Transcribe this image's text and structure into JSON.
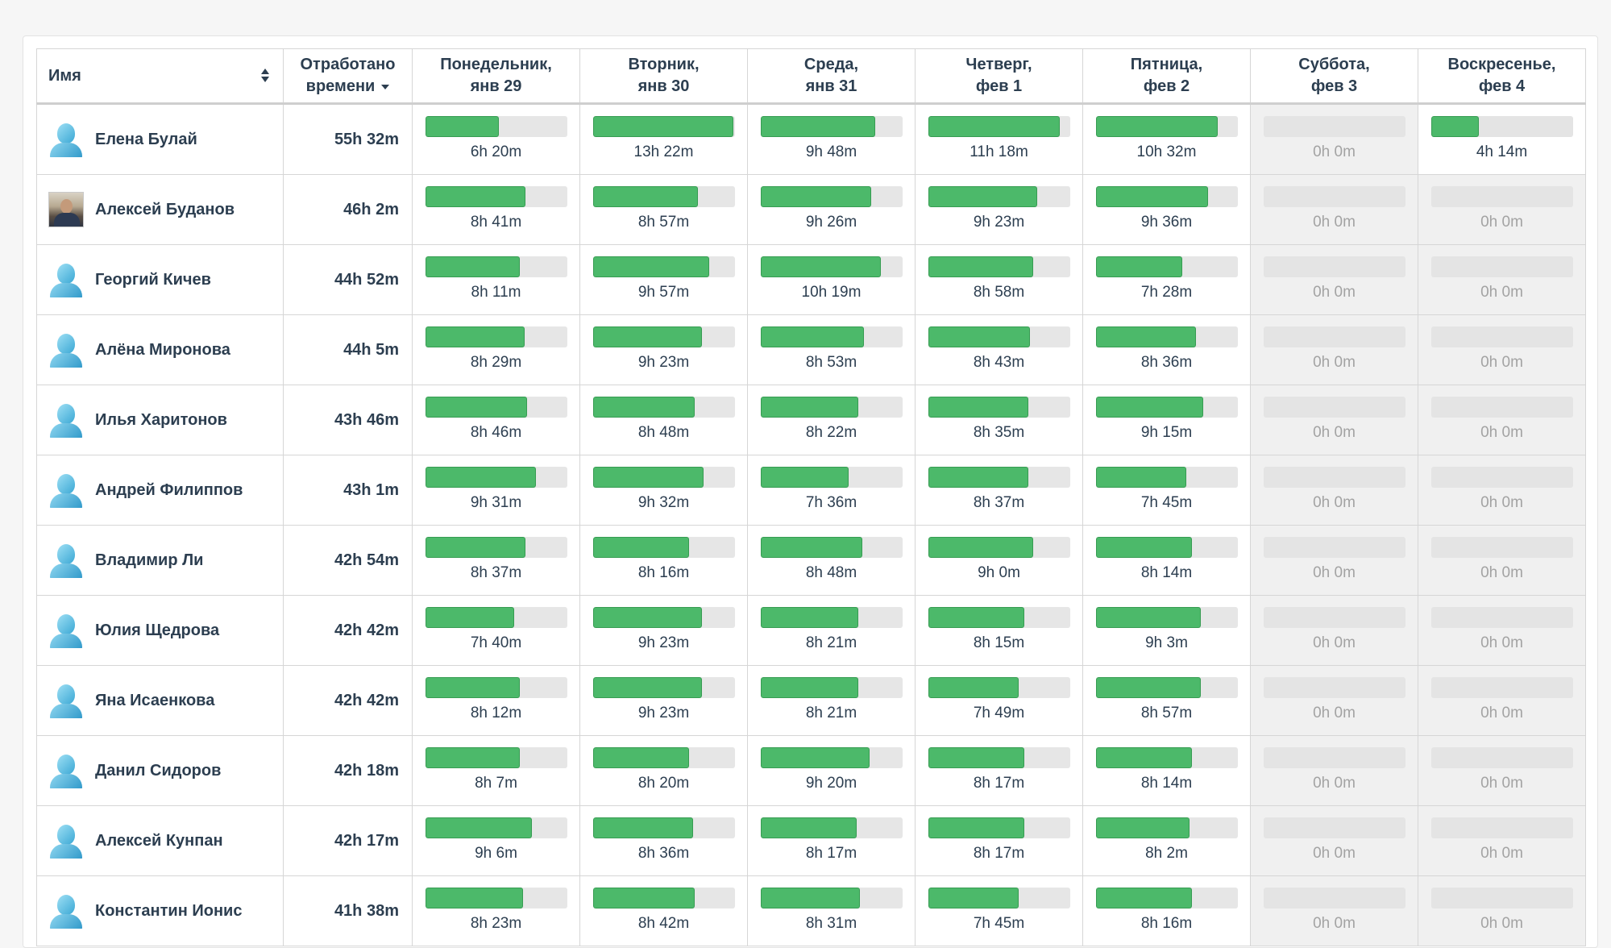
{
  "headers": {
    "name": "Имя",
    "total_line1": "Отработано",
    "total_line2": "времени",
    "days": [
      {
        "line1": "Понедельник,",
        "line2": "янв 29"
      },
      {
        "line1": "Вторник,",
        "line2": "янв 30"
      },
      {
        "line1": "Среда,",
        "line2": "янв 31"
      },
      {
        "line1": "Четверг,",
        "line2": "фев 1"
      },
      {
        "line1": "Пятница,",
        "line2": "фев 2"
      },
      {
        "line1": "Суббота,",
        "line2": "фев 3"
      },
      {
        "line1": "Воскресенье,",
        "line2": "фев 4"
      }
    ]
  },
  "colors": {
    "bar_fill": "#4cb96a",
    "bar_track": "#e6e6e6",
    "weekend_bg": "#f0f0f0"
  },
  "rows": [
    {
      "name": "Елена Булай",
      "avatar": "default-user-icon",
      "total": "55h 32m",
      "days": [
        {
          "label": "6h 20m",
          "pct": 0.52
        },
        {
          "label": "13h 22m",
          "pct": 0.99
        },
        {
          "label": "9h 48m",
          "pct": 0.81
        },
        {
          "label": "11h 18m",
          "pct": 0.93
        },
        {
          "label": "10h 32m",
          "pct": 0.86
        },
        {
          "label": "0h 0m",
          "pct": 0
        },
        {
          "label": "4h 14m",
          "pct": 0.34
        }
      ]
    },
    {
      "name": "Алексей Буданов",
      "avatar": "photo",
      "total": "46h 2m",
      "days": [
        {
          "label": "8h 41m",
          "pct": 0.71
        },
        {
          "label": "8h 57m",
          "pct": 0.74
        },
        {
          "label": "9h 26m",
          "pct": 0.78
        },
        {
          "label": "9h 23m",
          "pct": 0.77
        },
        {
          "label": "9h 36m",
          "pct": 0.79
        },
        {
          "label": "0h 0m",
          "pct": 0
        },
        {
          "label": "0h 0m",
          "pct": 0
        }
      ]
    },
    {
      "name": "Георгий Кичев",
      "avatar": "default-user-icon",
      "total": "44h 52m",
      "days": [
        {
          "label": "8h 11m",
          "pct": 0.67
        },
        {
          "label": "9h 57m",
          "pct": 0.82
        },
        {
          "label": "10h 19m",
          "pct": 0.85
        },
        {
          "label": "8h 58m",
          "pct": 0.74
        },
        {
          "label": "7h 28m",
          "pct": 0.61
        },
        {
          "label": "0h 0m",
          "pct": 0
        },
        {
          "label": "0h 0m",
          "pct": 0
        }
      ]
    },
    {
      "name": "Алёна Миронова",
      "avatar": "default-user-icon",
      "total": "44h 5m",
      "days": [
        {
          "label": "8h 29m",
          "pct": 0.7
        },
        {
          "label": "9h 23m",
          "pct": 0.77
        },
        {
          "label": "8h 53m",
          "pct": 0.73
        },
        {
          "label": "8h 43m",
          "pct": 0.72
        },
        {
          "label": "8h 36m",
          "pct": 0.71
        },
        {
          "label": "0h 0m",
          "pct": 0
        },
        {
          "label": "0h 0m",
          "pct": 0
        }
      ]
    },
    {
      "name": "Илья Харитонов",
      "avatar": "default-user-icon",
      "total": "43h 46m",
      "days": [
        {
          "label": "8h 46m",
          "pct": 0.72
        },
        {
          "label": "8h 48m",
          "pct": 0.72
        },
        {
          "label": "8h 22m",
          "pct": 0.69
        },
        {
          "label": "8h 35m",
          "pct": 0.71
        },
        {
          "label": "9h 15m",
          "pct": 0.76
        },
        {
          "label": "0h 0m",
          "pct": 0
        },
        {
          "label": "0h 0m",
          "pct": 0
        }
      ]
    },
    {
      "name": "Андрей Филиппов",
      "avatar": "default-user-icon",
      "total": "43h 1m",
      "days": [
        {
          "label": "9h 31m",
          "pct": 0.78
        },
        {
          "label": "9h 32m",
          "pct": 0.78
        },
        {
          "label": "7h 36m",
          "pct": 0.62
        },
        {
          "label": "8h 37m",
          "pct": 0.71
        },
        {
          "label": "7h 45m",
          "pct": 0.64
        },
        {
          "label": "0h 0m",
          "pct": 0
        },
        {
          "label": "0h 0m",
          "pct": 0
        }
      ]
    },
    {
      "name": "Владимир Ли",
      "avatar": "default-user-icon",
      "total": "42h 54m",
      "days": [
        {
          "label": "8h 37m",
          "pct": 0.71
        },
        {
          "label": "8h 16m",
          "pct": 0.68
        },
        {
          "label": "8h 48m",
          "pct": 0.72
        },
        {
          "label": "9h 0m",
          "pct": 0.74
        },
        {
          "label": "8h 14m",
          "pct": 0.68
        },
        {
          "label": "0h 0m",
          "pct": 0
        },
        {
          "label": "0h 0m",
          "pct": 0
        }
      ]
    },
    {
      "name": "Юлия Щедрова",
      "avatar": "default-user-icon",
      "total": "42h 42m",
      "days": [
        {
          "label": "7h 40m",
          "pct": 0.63
        },
        {
          "label": "9h 23m",
          "pct": 0.77
        },
        {
          "label": "8h 21m",
          "pct": 0.69
        },
        {
          "label": "8h 15m",
          "pct": 0.68
        },
        {
          "label": "9h 3m",
          "pct": 0.74
        },
        {
          "label": "0h 0m",
          "pct": 0
        },
        {
          "label": "0h 0m",
          "pct": 0
        }
      ]
    },
    {
      "name": "Яна Исаенкова",
      "avatar": "default-user-icon",
      "total": "42h 42m",
      "days": [
        {
          "label": "8h 12m",
          "pct": 0.67
        },
        {
          "label": "9h 23m",
          "pct": 0.77
        },
        {
          "label": "8h 21m",
          "pct": 0.69
        },
        {
          "label": "7h 49m",
          "pct": 0.64
        },
        {
          "label": "8h 57m",
          "pct": 0.74
        },
        {
          "label": "0h 0m",
          "pct": 0
        },
        {
          "label": "0h 0m",
          "pct": 0
        }
      ]
    },
    {
      "name": "Данил Сидоров",
      "avatar": "default-user-icon",
      "total": "42h 18m",
      "days": [
        {
          "label": "8h 7m",
          "pct": 0.67
        },
        {
          "label": "8h 20m",
          "pct": 0.68
        },
        {
          "label": "9h 20m",
          "pct": 0.77
        },
        {
          "label": "8h 17m",
          "pct": 0.68
        },
        {
          "label": "8h 14m",
          "pct": 0.68
        },
        {
          "label": "0h 0m",
          "pct": 0
        },
        {
          "label": "0h 0m",
          "pct": 0
        }
      ]
    },
    {
      "name": "Алексей Кунпан",
      "avatar": "default-user-icon",
      "total": "42h 17m",
      "days": [
        {
          "label": "9h 6m",
          "pct": 0.75
        },
        {
          "label": "8h 36m",
          "pct": 0.71
        },
        {
          "label": "8h 17m",
          "pct": 0.68
        },
        {
          "label": "8h 17m",
          "pct": 0.68
        },
        {
          "label": "8h 2m",
          "pct": 0.66
        },
        {
          "label": "0h 0m",
          "pct": 0
        },
        {
          "label": "0h 0m",
          "pct": 0
        }
      ]
    },
    {
      "name": "Константин Ионис",
      "avatar": "default-user-icon",
      "total": "41h 38m",
      "days": [
        {
          "label": "8h 23m",
          "pct": 0.69
        },
        {
          "label": "8h 42m",
          "pct": 0.72
        },
        {
          "label": "8h 31m",
          "pct": 0.7
        },
        {
          "label": "7h 45m",
          "pct": 0.64
        },
        {
          "label": "8h 16m",
          "pct": 0.68
        },
        {
          "label": "0h 0m",
          "pct": 0
        },
        {
          "label": "0h 0m",
          "pct": 0
        }
      ]
    }
  ]
}
